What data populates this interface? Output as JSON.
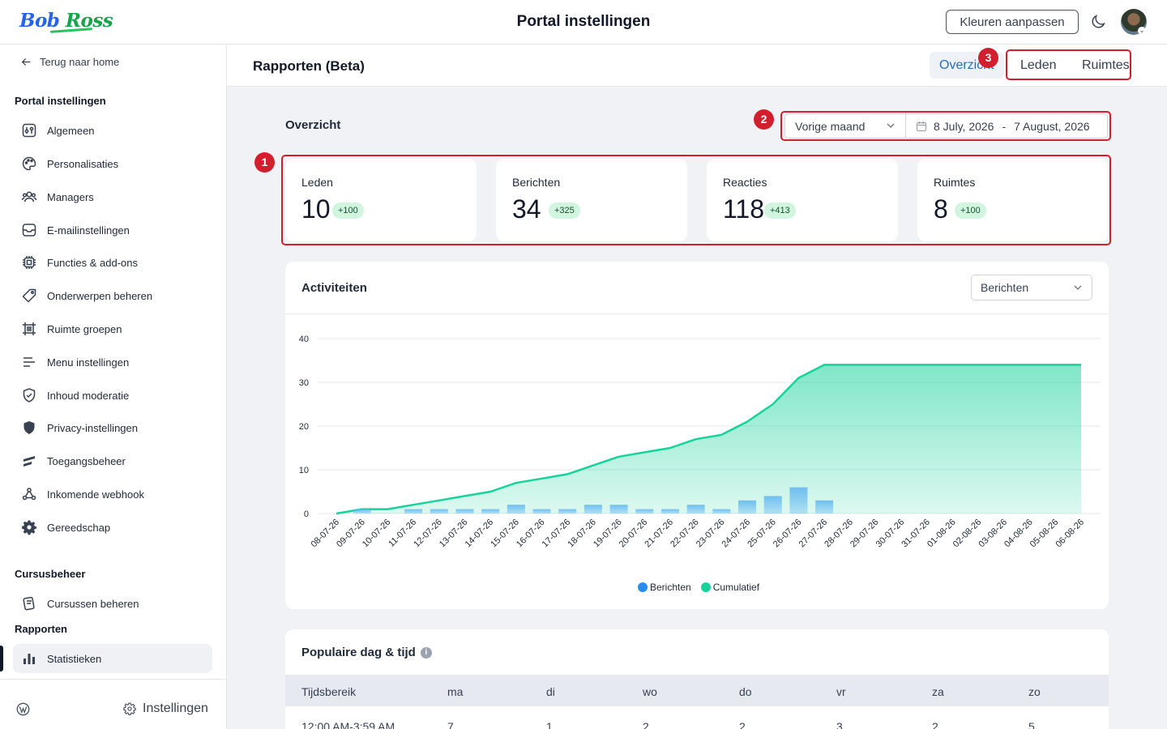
{
  "topbar": {
    "logo_first": "Bob",
    "logo_second": "Ross",
    "title": "Portal instellingen",
    "colors_button": "Kleuren aanpassen"
  },
  "sidebar": {
    "back_label": "Terug naar home",
    "section_portal": "Portal instellingen",
    "items": [
      {
        "label": "Algemeen",
        "icon": "sliders-icon"
      },
      {
        "label": "Personalisaties",
        "icon": "palette-icon"
      },
      {
        "label": "Managers",
        "icon": "users-icon"
      },
      {
        "label": "E-mailinstellingen",
        "icon": "mail-icon"
      },
      {
        "label": "Functies & add-ons",
        "icon": "chip-icon"
      },
      {
        "label": "Onderwerpen beheren",
        "icon": "tag-icon"
      },
      {
        "label": "Ruimte groepen",
        "icon": "frame-icon"
      },
      {
        "label": "Menu instellingen",
        "icon": "menu-icon"
      },
      {
        "label": "Inhoud moderatie",
        "icon": "shield-check-icon"
      },
      {
        "label": "Privacy-instellingen",
        "icon": "shield-icon"
      },
      {
        "label": "Toegangsbeheer",
        "icon": "stripes-icon"
      },
      {
        "label": "Inkomende webhook",
        "icon": "webhook-icon"
      },
      {
        "label": "Gereedschap",
        "icon": "gear-icon"
      }
    ],
    "section_courses": "Cursusbeheer",
    "course_item": "Cursussen beheren",
    "section_reports": "Rapporten",
    "reports_item": "Statistieken",
    "footer_settings": "Instellingen"
  },
  "header": {
    "title": "Rapporten (Beta)",
    "tabs": [
      "Overzicht",
      "Leden",
      "Ruimtes"
    ]
  },
  "annotations": [
    "1",
    "2",
    "3"
  ],
  "overview": {
    "title": "Overzicht",
    "period": "Vorige maand",
    "date_from": "8 July, 2026",
    "date_sep": "-",
    "date_to": "7 August, 2026",
    "stats": [
      {
        "label": "Leden",
        "value": "10",
        "delta": "+100"
      },
      {
        "label": "Berichten",
        "value": "34",
        "delta": "+325"
      },
      {
        "label": "Reacties",
        "value": "118",
        "delta": "+413"
      },
      {
        "label": "Ruimtes",
        "value": "8",
        "delta": "+100"
      }
    ]
  },
  "activity": {
    "title": "Activiteiten",
    "select": "Berichten"
  },
  "chart_data": {
    "type": "bar",
    "categories": [
      "08-07-26",
      "09-07-26",
      "10-07-26",
      "11-07-26",
      "12-07-26",
      "13-07-26",
      "14-07-26",
      "15-07-26",
      "16-07-26",
      "17-07-26",
      "18-07-26",
      "19-07-26",
      "20-07-26",
      "21-07-26",
      "22-07-26",
      "23-07-26",
      "24-07-26",
      "25-07-26",
      "26-07-26",
      "27-07-26",
      "28-07-26",
      "29-07-26",
      "30-07-26",
      "31-07-26",
      "01-08-26",
      "02-08-26",
      "03-08-26",
      "04-08-26",
      "05-08-26",
      "06-08-26"
    ],
    "series": [
      {
        "name": "Berichten",
        "type": "bar",
        "color": "#60b7f0",
        "values": [
          0,
          1,
          0,
          1,
          1,
          1,
          1,
          2,
          1,
          1,
          2,
          2,
          1,
          1,
          2,
          1,
          3,
          4,
          6,
          3,
          0,
          0,
          0,
          0,
          0,
          0,
          0,
          0,
          0,
          0
        ]
      },
      {
        "name": "Cumulatief",
        "type": "area",
        "color": "#17d39b",
        "values": [
          0,
          1,
          1,
          2,
          3,
          4,
          5,
          7,
          8,
          9,
          11,
          13,
          14,
          15,
          17,
          18,
          21,
          25,
          31,
          34,
          34,
          34,
          34,
          34,
          34,
          34,
          34,
          34,
          34,
          34
        ]
      }
    ],
    "yticks": [
      0,
      10,
      20,
      30,
      40
    ],
    "ylim": [
      0,
      40
    ],
    "legend": "bottom",
    "grid": true
  },
  "popular": {
    "title": "Populaire dag & tijd",
    "headers": [
      "Tijdsbereik",
      "ma",
      "di",
      "wo",
      "do",
      "vr",
      "za",
      "zo"
    ],
    "rows": [
      [
        "12:00 AM-3:59 AM",
        "7",
        "1",
        "2",
        "2",
        "3",
        "2",
        "5"
      ]
    ]
  }
}
